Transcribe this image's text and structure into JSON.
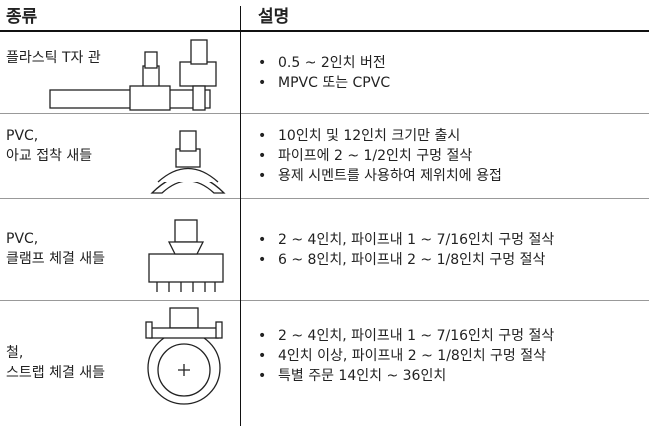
{
  "header": {
    "type": "종류",
    "description": "설명"
  },
  "rows": [
    {
      "type_lines": [
        "플라스틱 T자 관"
      ],
      "bullets": [
        "0.5 ~ 2인치 버전",
        "MPVC 또는 CPVC"
      ]
    },
    {
      "type_lines": [
        "PVC,",
        "아교 접착 새들"
      ],
      "bullets": [
        "10인치 및 12인치 크기만 출시",
        "파이프에 2 ~ 1/2인치 구멍 절삭",
        "용제 시멘트를 사용하여 제위치에 용접"
      ]
    },
    {
      "type_lines": [
        "PVC,",
        "클램프 체결 새들"
      ],
      "bullets": [
        "2 ~ 4인치, 파이프내 1 ~ 7/16인치 구멍 절삭",
        "6 ~ 8인치, 파이프내 2 ~ 1/8인치 구멍 절삭"
      ]
    },
    {
      "type_lines": [
        "철,",
        "스트랩 체결 새들"
      ],
      "bullets": [
        "2 ~ 4인치, 파이프내 1 ~ 7/16인치 구멍 절삭",
        "4인치 이상, 파이프내 2 ~ 1/8인치 구멍 절삭",
        "특별 주문 14인치 ~ 36인치"
      ]
    }
  ]
}
